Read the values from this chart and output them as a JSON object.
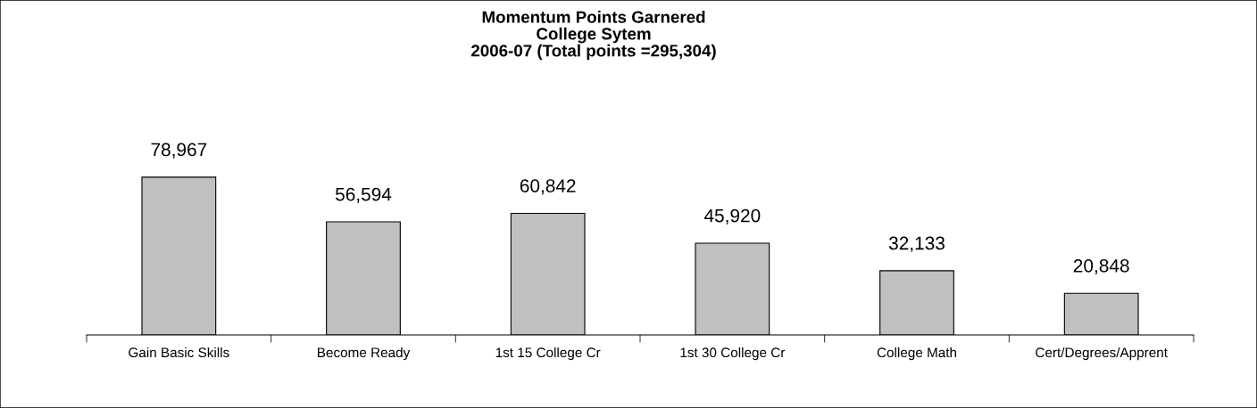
{
  "chart_data": {
    "type": "bar",
    "title": "Momentum Points Garnered\nCollege Sytem\n2006-07 (Total points =295,304)",
    "categories": [
      "Gain Basic Skills",
      "Become Ready",
      "1st 15 College Cr",
      "1st 30 College Cr",
      "College Math",
      "Cert/Degrees/Apprent"
    ],
    "values": [
      78967,
      56594,
      60842,
      45920,
      32133,
      20848
    ],
    "value_labels": [
      "78,967",
      "56,594",
      "60,842",
      "45,920",
      "32,133",
      "20,848"
    ],
    "color": "#c0c0c0",
    "grid": false,
    "legend": false,
    "tick_labels": "x"
  }
}
